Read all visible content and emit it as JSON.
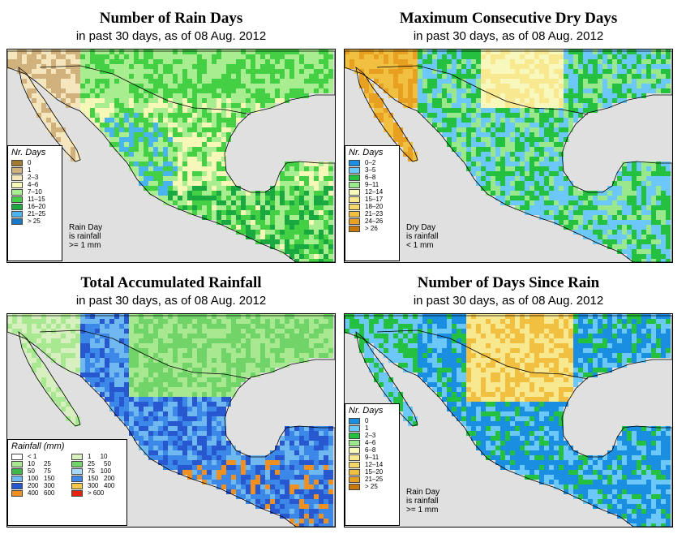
{
  "panels": [
    {
      "title": "Number of Rain Days",
      "subtitle": "in past 30 days, as of  08 Aug. 2012",
      "legend_title": "Nr. Days",
      "legend": [
        {
          "label": "0",
          "color": "#a07a30"
        },
        {
          "label": "1",
          "color": "#d2b27c"
        },
        {
          "label": "2–3",
          "color": "#f5e6bd"
        },
        {
          "label": "4–6",
          "color": "#f7f7b8"
        },
        {
          "label": "7–10",
          "color": "#a8ee90"
        },
        {
          "label": "11–15",
          "color": "#44d044"
        },
        {
          "label": "16–20",
          "color": "#1aa840"
        },
        {
          "label": "21–25",
          "color": "#4ab4f0"
        },
        {
          "label": "> 25",
          "color": "#1a78c8"
        }
      ],
      "note": [
        "Rain Day",
        "is rainfall",
        ">= 1 mm"
      ]
    },
    {
      "title": "Maximum Consecutive Dry Days",
      "subtitle": "in past 30 days, as of  08 Aug. 2012",
      "legend_title": "Nr. Days",
      "legend": [
        {
          "label": "0–2",
          "color": "#1a8ee0"
        },
        {
          "label": "3–5",
          "color": "#6cc8f8"
        },
        {
          "label": "6–8",
          "color": "#24c040"
        },
        {
          "label": "9–11",
          "color": "#9ae88c"
        },
        {
          "label": "12–14",
          "color": "#f8f8bc"
        },
        {
          "label": "15–17",
          "color": "#f8e890"
        },
        {
          "label": "18–20",
          "color": "#f6d868"
        },
        {
          "label": "21–23",
          "color": "#f2c040"
        },
        {
          "label": "24–26",
          "color": "#e8a020"
        },
        {
          "label": "> 26",
          "color": "#c87808"
        }
      ],
      "note": [
        "Dry Day",
        "is rainfall",
        "< 1 mm"
      ]
    },
    {
      "title": "Total Accumulated Rainfall",
      "subtitle": "in past 30 days, as of  08 Aug. 2012",
      "legend_title": "Rainfall (mm)",
      "legend": [
        {
          "label": "< 1",
          "color": "#ffffff"
        },
        {
          "label": "1     10",
          "color": "#d8f0c0"
        },
        {
          "label": "10     25",
          "color": "#a8e890"
        },
        {
          "label": "25     50",
          "color": "#70d468"
        },
        {
          "label": "50     75",
          "color": "#3cb848"
        },
        {
          "label": "75   100",
          "color": "#a8d8f8"
        },
        {
          "label": "100   150",
          "color": "#70b8f0"
        },
        {
          "label": "150   200",
          "color": "#3c88e8"
        },
        {
          "label": "200   300",
          "color": "#2858d0"
        },
        {
          "label": "300   400",
          "color": "#f8c848"
        },
        {
          "label": "400   600",
          "color": "#f09020"
        },
        {
          "label": "> 600",
          "color": "#e82010"
        }
      ],
      "note": []
    },
    {
      "title": "Number of Days Since Rain",
      "subtitle": "in past 30 days, as of  08 Aug. 2012",
      "legend_title": "Nr. Days",
      "legend": [
        {
          "label": "0",
          "color": "#1a8ee0"
        },
        {
          "label": "1",
          "color": "#6cc8f8"
        },
        {
          "label": "2–3",
          "color": "#24c040"
        },
        {
          "label": "4–6",
          "color": "#9ae88c"
        },
        {
          "label": "6–8",
          "color": "#f8f8bc"
        },
        {
          "label": "9–11",
          "color": "#f8e890"
        },
        {
          "label": "12–14",
          "color": "#f6d868"
        },
        {
          "label": "15–20",
          "color": "#f2c040"
        },
        {
          "label": "21–25",
          "color": "#e8a020"
        },
        {
          "label": "> 25",
          "color": "#c87808"
        }
      ],
      "note": [
        "Rain Day",
        "is rainfall",
        ">= 1 mm"
      ]
    }
  ],
  "colors": {
    "ocean": "#e0e0e0",
    "border": "#000000"
  }
}
